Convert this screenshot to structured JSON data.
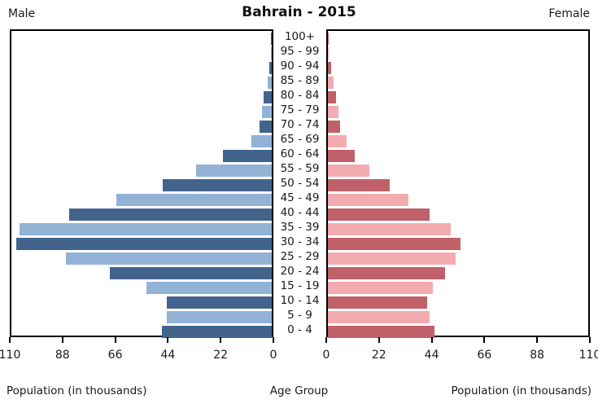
{
  "header": {
    "left": "Male",
    "title": "Bahrain - 2015",
    "right": "Female"
  },
  "footer": {
    "left_axis_label": "Population (in thousands)",
    "center_label": "Age Group",
    "right_axis_label": "Population (in thousands)"
  },
  "axis": {
    "male_ticks": [
      "110",
      "88",
      "66",
      "44",
      "22",
      "0"
    ],
    "female_ticks": [
      "0",
      "22",
      "44",
      "66",
      "88",
      "110"
    ],
    "max": 110
  },
  "colors": {
    "male_dark": "#42648C",
    "male_light": "#92B2D6",
    "female_dark": "#C0616A",
    "female_light": "#F2ABAF",
    "axis": "#000000"
  },
  "chart_data": {
    "type": "bar",
    "subtype": "population-pyramid",
    "title": "Bahrain - 2015",
    "xlabel": "Population (in thousands)",
    "center_label": "Age Group",
    "xlim": [
      0,
      110
    ],
    "grid": false,
    "categories": [
      "100+",
      "95 - 99",
      "90 - 94",
      "85 - 89",
      "80 - 84",
      "75 - 79",
      "70 - 74",
      "65 - 69",
      "60 - 64",
      "55 - 59",
      "50 - 54",
      "45 - 49",
      "40 - 44",
      "35 - 39",
      "30 - 34",
      "25 - 29",
      "20 - 24",
      "15 - 19",
      "10 - 14",
      "5 - 9",
      "0 - 4"
    ],
    "series": [
      {
        "name": "Male",
        "side": "left",
        "values": [
          0.3,
          0.4,
          1.0,
          1.8,
          3.3,
          4.0,
          5.3,
          8.5,
          20.5,
          32,
          46,
          65.5,
          85.5,
          106.5,
          108,
          87,
          68.5,
          53,
          44.5,
          44.5,
          46.5
        ]
      },
      {
        "name": "Female",
        "side": "right",
        "values": [
          0.3,
          0.5,
          1.5,
          2.3,
          3.4,
          4.3,
          5.1,
          8.0,
          11.5,
          17.5,
          26,
          34,
          43,
          52,
          56,
          54,
          49.5,
          44.5,
          42,
          43,
          45
        ]
      }
    ]
  }
}
